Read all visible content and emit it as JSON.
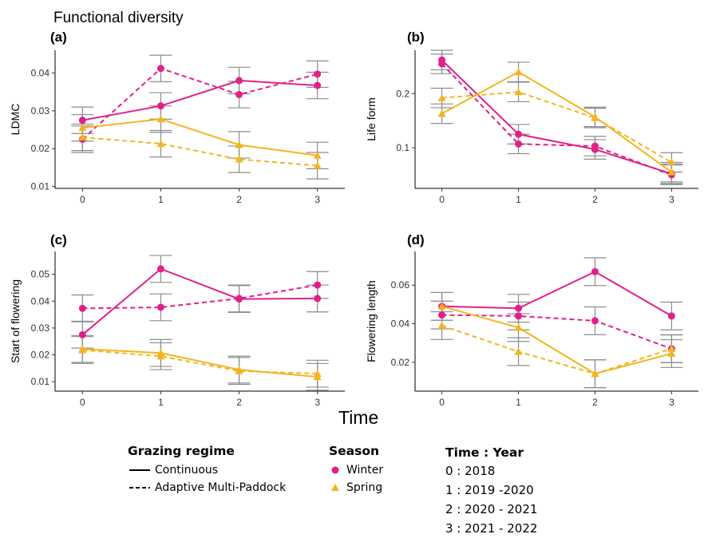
{
  "figure": {
    "supertitle": "Functional diversity",
    "shared_xlabel": "Time"
  },
  "colors": {
    "winter": "#E0218A",
    "spring": "#F2B51F",
    "errorbar": "#8c8c8c"
  },
  "chart_data": [
    {
      "type": "line",
      "panel": "(a)",
      "title": "",
      "xlabel": "",
      "ylabel": "LDMC",
      "x": [
        0,
        1,
        2,
        3
      ],
      "xlim": [
        -0.35,
        3.35
      ],
      "ylim": [
        0.0095,
        0.046
      ],
      "yticks": [
        0.01,
        0.02,
        0.03,
        0.04
      ],
      "ytick_labels": [
        "0.01",
        "0.02",
        "0.03",
        "0.04"
      ],
      "grid": false,
      "series": [
        {
          "name": "",
          "season": "Winter",
          "regime": "Continuous",
          "values": [
            0.0275,
            0.0313,
            0.038,
            0.0367
          ],
          "err": [
            0.0035,
            0.0035,
            0.0035,
            0.0035
          ]
        },
        {
          "name": "",
          "season": "Winter",
          "regime": "Adaptive Multi-Paddock",
          "values": [
            0.0225,
            0.0412,
            0.0343,
            0.0397
          ],
          "err": [
            0.0035,
            0.0035,
            0.0035,
            0.0035
          ]
        },
        {
          "name": "",
          "season": "Spring",
          "regime": "Continuous",
          "values": [
            0.0255,
            0.0278,
            0.021,
            0.0182
          ],
          "err": [
            0.0035,
            0.0035,
            0.0035,
            0.0035
          ]
        },
        {
          "name": "",
          "season": "Spring",
          "regime": "Adaptive Multi-Paddock",
          "values": [
            0.023,
            0.0213,
            0.0172,
            0.0155
          ],
          "err": [
            0.0035,
            0.0035,
            0.0035,
            0.0035
          ]
        }
      ]
    },
    {
      "type": "line",
      "panel": "(b)",
      "title": "",
      "xlabel": "",
      "ylabel": "Life form",
      "x": [
        0,
        1,
        2,
        3
      ],
      "xlim": [
        -0.35,
        3.35
      ],
      "ylim": [
        0.025,
        0.28
      ],
      "yticks": [
        0.1,
        0.2
      ],
      "ytick_labels": [
        "0.1",
        "0.2"
      ],
      "grid": false,
      "series": [
        {
          "name": "",
          "season": "Winter",
          "regime": "Continuous",
          "values": [
            0.262,
            0.125,
            0.097,
            0.052
          ],
          "err": [
            0.018,
            0.018,
            0.018,
            0.018
          ]
        },
        {
          "name": "",
          "season": "Winter",
          "regime": "Adaptive Multi-Paddock",
          "values": [
            0.255,
            0.107,
            0.103,
            0.05
          ],
          "err": [
            0.018,
            0.018,
            0.018,
            0.018
          ]
        },
        {
          "name": "",
          "season": "Spring",
          "regime": "Continuous",
          "values": [
            0.163,
            0.24,
            0.157,
            0.055
          ],
          "err": [
            0.018,
            0.018,
            0.018,
            0.018
          ]
        },
        {
          "name": "",
          "season": "Spring",
          "regime": "Adaptive Multi-Paddock",
          "values": [
            0.192,
            0.203,
            0.155,
            0.073
          ],
          "err": [
            0.018,
            0.018,
            0.018,
            0.018
          ]
        }
      ]
    },
    {
      "type": "line",
      "panel": "(c)",
      "title": "",
      "xlabel": "",
      "ylabel": "Start of flowering",
      "x": [
        0,
        1,
        2,
        3
      ],
      "xlim": [
        -0.35,
        3.35
      ],
      "ylim": [
        0.0065,
        0.0585
      ],
      "yticks": [
        0.01,
        0.02,
        0.03,
        0.04,
        0.05
      ],
      "ytick_labels": [
        "0.01",
        "0.02",
        "0.03",
        "0.04",
        "0.05"
      ],
      "grid": false,
      "series": [
        {
          "name": "",
          "season": "Winter",
          "regime": "Continuous",
          "values": [
            0.0275,
            0.052,
            0.0408,
            0.041
          ],
          "err": [
            0.005,
            0.005,
            0.005,
            0.005
          ]
        },
        {
          "name": "",
          "season": "Winter",
          "regime": "Adaptive Multi-Paddock",
          "values": [
            0.0373,
            0.0377,
            0.041,
            0.046
          ],
          "err": [
            0.005,
            0.005,
            0.005,
            0.005
          ]
        },
        {
          "name": "",
          "season": "Spring",
          "regime": "Continuous",
          "values": [
            0.0222,
            0.0207,
            0.0145,
            0.0118
          ],
          "err": [
            0.005,
            0.005,
            0.005,
            0.005
          ]
        },
        {
          "name": "",
          "season": "Spring",
          "regime": "Adaptive Multi-Paddock",
          "values": [
            0.0218,
            0.0195,
            0.014,
            0.013
          ],
          "err": [
            0.005,
            0.005,
            0.005,
            0.005
          ]
        }
      ]
    },
    {
      "type": "line",
      "panel": "(d)",
      "title": "",
      "xlabel": "",
      "ylabel": "Flowering length",
      "x": [
        0,
        1,
        2,
        3
      ],
      "xlim": [
        -0.35,
        3.35
      ],
      "ylim": [
        0.005,
        0.0775
      ],
      "yticks": [
        0.02,
        0.04,
        0.06
      ],
      "ytick_labels": [
        "0.02",
        "0.04",
        "0.06"
      ],
      "grid": false,
      "series": [
        {
          "name": "",
          "season": "Winter",
          "regime": "Continuous",
          "values": [
            0.049,
            0.048,
            0.067,
            0.044
          ],
          "err": [
            0.0072,
            0.0072,
            0.0072,
            0.0072
          ]
        },
        {
          "name": "",
          "season": "Winter",
          "regime": "Adaptive Multi-Paddock",
          "values": [
            0.0445,
            0.044,
            0.0415,
            0.027
          ],
          "err": [
            0.0072,
            0.0072,
            0.0072,
            0.0072
          ]
        },
        {
          "name": "",
          "season": "Spring",
          "regime": "Continuous",
          "values": [
            0.049,
            0.038,
            0.014,
            0.0245
          ],
          "err": [
            0.0072,
            0.0072,
            0.0072,
            0.0072
          ]
        },
        {
          "name": "",
          "season": "Spring",
          "regime": "Adaptive Multi-Paddock",
          "values": [
            0.039,
            0.0255,
            0.014,
            0.027
          ],
          "err": [
            0.0072,
            0.0072,
            0.0072,
            0.0072
          ]
        }
      ]
    }
  ],
  "legend": {
    "grazing": {
      "title": "Grazing regime",
      "items": [
        {
          "label": "Continuous",
          "line": "solid"
        },
        {
          "label": "Adaptive Multi-Paddock",
          "line": "dashed"
        }
      ]
    },
    "season": {
      "title": "Season",
      "items": [
        {
          "label": "Winter",
          "marker": "circle"
        },
        {
          "label": "Spring",
          "marker": "triangle"
        }
      ]
    },
    "time_year": {
      "title": "Time : Year",
      "items": [
        "0 : 2018",
        "1 : 2019 -2020",
        "2 : 2020 - 2021",
        "3 : 2021 - 2022"
      ]
    }
  }
}
